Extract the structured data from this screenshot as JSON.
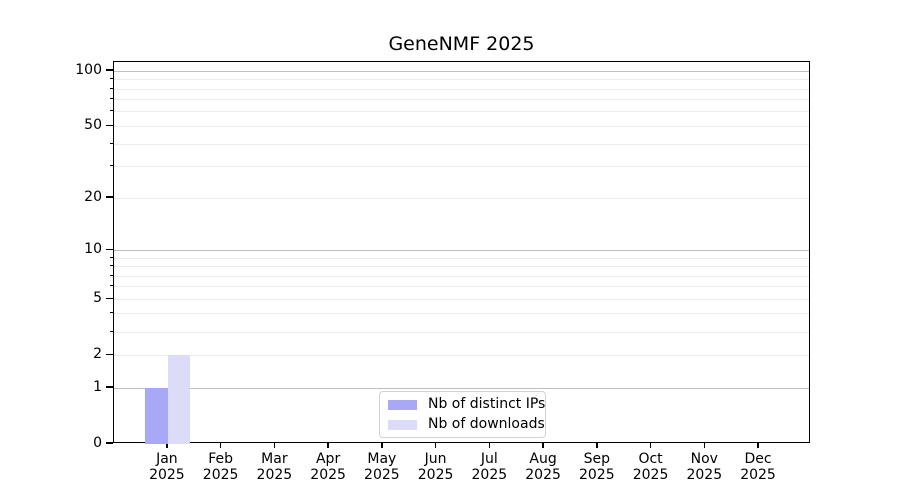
{
  "chart_data": {
    "type": "bar",
    "title": "GeneNMF 2025",
    "x_categories": [
      {
        "month": "Jan",
        "year": "2025"
      },
      {
        "month": "Feb",
        "year": "2025"
      },
      {
        "month": "Mar",
        "year": "2025"
      },
      {
        "month": "Apr",
        "year": "2025"
      },
      {
        "month": "May",
        "year": "2025"
      },
      {
        "month": "Jun",
        "year": "2025"
      },
      {
        "month": "Jul",
        "year": "2025"
      },
      {
        "month": "Aug",
        "year": "2025"
      },
      {
        "month": "Sep",
        "year": "2025"
      },
      {
        "month": "Oct",
        "year": "2025"
      },
      {
        "month": "Nov",
        "year": "2025"
      },
      {
        "month": "Dec",
        "year": "2025"
      }
    ],
    "series": [
      {
        "name": "Nb of distinct IPs",
        "color": "#a8a8f7",
        "values": [
          1,
          0,
          0,
          0,
          0,
          0,
          0,
          0,
          0,
          0,
          0,
          0
        ]
      },
      {
        "name": "Nb of downloads",
        "color": "#dcdcf8",
        "values": [
          2,
          0,
          0,
          0,
          0,
          0,
          0,
          0,
          0,
          0,
          0,
          0
        ]
      }
    ],
    "y_scale": "log10(1+x)",
    "ylim": [
      0,
      110
    ],
    "y_ticks": [
      {
        "value": 0,
        "label": "0",
        "grid": "none"
      },
      {
        "value": 1,
        "label": "1",
        "grid": "major"
      },
      {
        "value": 2,
        "label": "2",
        "grid": "minor"
      },
      {
        "value": 5,
        "label": "5",
        "grid": "minor"
      },
      {
        "value": 10,
        "label": "10",
        "grid": "major"
      },
      {
        "value": 20,
        "label": "20",
        "grid": "minor"
      },
      {
        "value": 50,
        "label": "50",
        "grid": "minor"
      },
      {
        "value": 100,
        "label": "100",
        "grid": "major"
      }
    ],
    "y_minor_gridlines": [
      3,
      4,
      6,
      7,
      8,
      9,
      30,
      40,
      60,
      70,
      80,
      90
    ],
    "legend": {
      "position": "lower center"
    },
    "colors": {
      "major_grid": "#bdbdbd",
      "minor_grid": "#ebebeb",
      "spine": "#000000"
    }
  }
}
